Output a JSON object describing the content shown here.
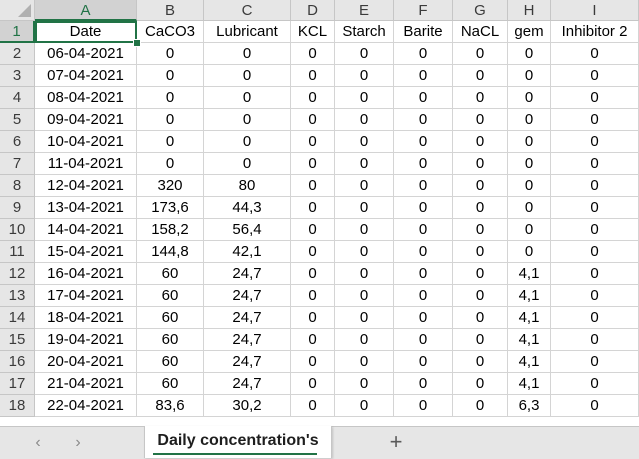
{
  "sheet": {
    "column_letters": [
      "A",
      "B",
      "C",
      "D",
      "E",
      "F",
      "G",
      "H",
      "I"
    ],
    "row_numbers": [
      "1",
      "2",
      "3",
      "4",
      "5",
      "6",
      "7",
      "8",
      "9",
      "10",
      "11",
      "12",
      "13",
      "14",
      "15",
      "16",
      "17",
      "18"
    ],
    "selected_cell": "A1",
    "header_row": [
      "Date",
      "CaCO3",
      "Lubricant",
      "KCL",
      "Starch",
      "Barite",
      "NaCL",
      "gem",
      "Inhibitor 2"
    ],
    "rows": [
      [
        "06-04-2021",
        "0",
        "0",
        "0",
        "0",
        "0",
        "0",
        "0",
        "0"
      ],
      [
        "07-04-2021",
        "0",
        "0",
        "0",
        "0",
        "0",
        "0",
        "0",
        "0"
      ],
      [
        "08-04-2021",
        "0",
        "0",
        "0",
        "0",
        "0",
        "0",
        "0",
        "0"
      ],
      [
        "09-04-2021",
        "0",
        "0",
        "0",
        "0",
        "0",
        "0",
        "0",
        "0"
      ],
      [
        "10-04-2021",
        "0",
        "0",
        "0",
        "0",
        "0",
        "0",
        "0",
        "0"
      ],
      [
        "11-04-2021",
        "0",
        "0",
        "0",
        "0",
        "0",
        "0",
        "0",
        "0"
      ],
      [
        "12-04-2021",
        "320",
        "80",
        "0",
        "0",
        "0",
        "0",
        "0",
        "0"
      ],
      [
        "13-04-2021",
        "173,6",
        "44,3",
        "0",
        "0",
        "0",
        "0",
        "0",
        "0"
      ],
      [
        "14-04-2021",
        "158,2",
        "56,4",
        "0",
        "0",
        "0",
        "0",
        "0",
        "0"
      ],
      [
        "15-04-2021",
        "144,8",
        "42,1",
        "0",
        "0",
        "0",
        "0",
        "0",
        "0"
      ],
      [
        "16-04-2021",
        "60",
        "24,7",
        "0",
        "0",
        "0",
        "0",
        "4,1",
        "0"
      ],
      [
        "17-04-2021",
        "60",
        "24,7",
        "0",
        "0",
        "0",
        "0",
        "4,1",
        "0"
      ],
      [
        "18-04-2021",
        "60",
        "24,7",
        "0",
        "0",
        "0",
        "0",
        "4,1",
        "0"
      ],
      [
        "19-04-2021",
        "60",
        "24,7",
        "0",
        "0",
        "0",
        "0",
        "4,1",
        "0"
      ],
      [
        "20-04-2021",
        "60",
        "24,7",
        "0",
        "0",
        "0",
        "0",
        "4,1",
        "0"
      ],
      [
        "21-04-2021",
        "60",
        "24,7",
        "0",
        "0",
        "0",
        "0",
        "4,1",
        "0"
      ],
      [
        "22-04-2021",
        "83,6",
        "30,2",
        "0",
        "0",
        "0",
        "0",
        "6,3",
        "0"
      ]
    ]
  },
  "tabbar": {
    "prev_glyph": "‹",
    "next_glyph": "›",
    "active_sheet": "Daily concentration's",
    "add_glyph": "+"
  },
  "colors": {
    "accent": "#217346",
    "header_bg": "#e6e6e6",
    "gridline": "#d4d4d4"
  }
}
